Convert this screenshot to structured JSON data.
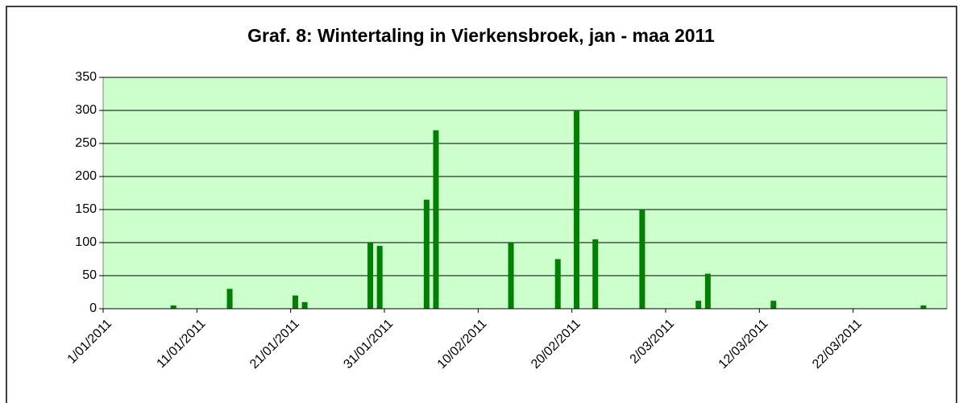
{
  "chart_data": {
    "type": "bar",
    "title": "Graf. 8: Wintertaling in Vierkensbroek, jan - maa 2011",
    "x": [
      "8/01/2011",
      "14/01/2011",
      "21/01/2011",
      "22/01/2011",
      "29/01/2011",
      "30/01/2011",
      "4/02/2011",
      "5/02/2011",
      "13/02/2011",
      "18/02/2011",
      "20/02/2011",
      "22/02/2011",
      "27/02/2011",
      "5/03/2011",
      "6/03/2011",
      "13/03/2011",
      "29/03/2011"
    ],
    "values": [
      5,
      30,
      20,
      10,
      100,
      95,
      165,
      270,
      100,
      75,
      300,
      105,
      150,
      12,
      53,
      12,
      5
    ],
    "color": "#008000",
    "xlim": [
      "1/01/2011",
      "1/04/2011"
    ],
    "xticks": [
      "1/01/2011",
      "11/01/2011",
      "21/01/2011",
      "31/01/2011",
      "10/02/2011",
      "20/02/2011",
      "2/03/2011",
      "12/03/2011",
      "22/03/2011"
    ],
    "ylim": [
      0,
      350
    ],
    "yticks": [
      0,
      50,
      100,
      150,
      200,
      250,
      300,
      350
    ],
    "grid": true,
    "background": "#ccffcc"
  }
}
